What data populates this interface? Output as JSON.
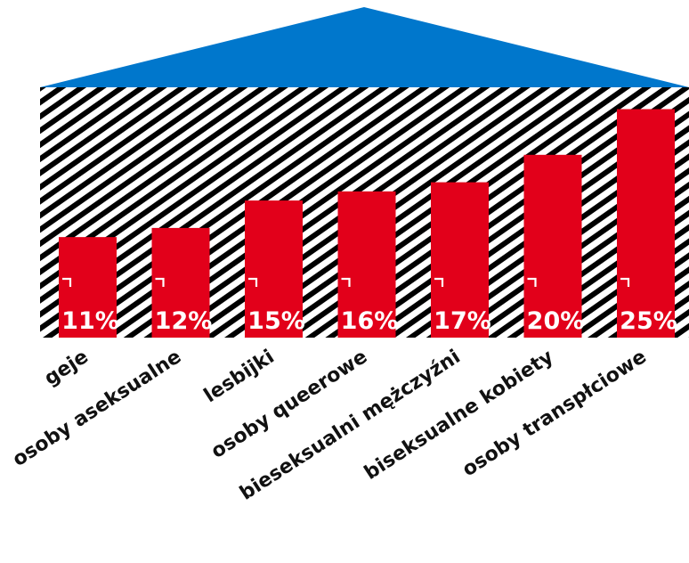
{
  "chart_data": {
    "type": "bar",
    "categories": [
      "geje",
      "osoby aseksualne",
      "lesbijki",
      "osoby queerowe",
      "bieseksualni mężczyźni",
      "biseksualne kobiety",
      "osoby transpłciowe"
    ],
    "values": [
      11,
      12,
      15,
      16,
      17,
      20,
      25
    ],
    "value_labels": [
      "11%",
      "12%",
      "15%",
      "16%",
      "17%",
      "20%",
      "25%"
    ],
    "unit": "%",
    "title": "",
    "xlabel": "",
    "ylabel": "",
    "ylim": [
      0,
      30
    ],
    "grid": false,
    "legend": "none",
    "colors": {
      "bar": "#e2001a",
      "roof": "#0077cc",
      "stripe_dark": "#000000",
      "stripe_light": "#ffffff",
      "label_text": "#111111",
      "value_text": "#ffffff"
    }
  }
}
